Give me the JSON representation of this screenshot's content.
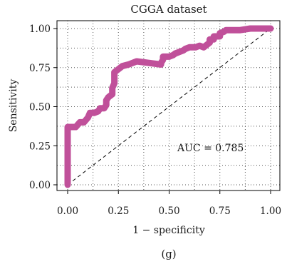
{
  "chart_data": {
    "type": "line",
    "title": "CGGA dataset",
    "xlabel": "1 − specificity",
    "ylabel": "Sensitivity",
    "xlim": [
      0,
      1
    ],
    "ylim": [
      0,
      1
    ],
    "xticks": [
      0,
      0.25,
      0.5,
      0.75,
      1
    ],
    "yticks": [
      0,
      0.25,
      0.5,
      0.75,
      1
    ],
    "xtick_labels": [
      "0.00",
      "0.25",
      "0.50",
      "0.75",
      "1.00"
    ],
    "ytick_labels": [
      "0.00",
      "0.25",
      "0.50",
      "0.75",
      "1.00"
    ],
    "grid": true,
    "annotation": "AUC = 0.785",
    "reference_line": {
      "x": [
        0,
        1
      ],
      "y": [
        0,
        1
      ],
      "style": "dashed",
      "color": "#000000"
    },
    "series": [
      {
        "color": "#c0509a",
        "x": [
          0.0,
          0.0,
          0.0,
          0.0,
          0.02,
          0.04,
          0.06,
          0.08,
          0.1,
          0.11,
          0.13,
          0.15,
          0.16,
          0.18,
          0.19,
          0.19,
          0.2,
          0.21,
          0.22,
          0.22,
          0.23,
          0.23,
          0.25,
          0.27,
          0.3,
          0.32,
          0.34,
          0.4,
          0.46,
          0.46,
          0.47,
          0.47,
          0.5,
          0.52,
          0.53,
          0.55,
          0.57,
          0.58,
          0.6,
          0.63,
          0.65,
          0.67,
          0.69,
          0.7,
          0.7,
          0.72,
          0.72,
          0.75,
          0.75,
          0.77,
          0.78,
          0.85,
          0.9,
          0.93,
          0.97,
          1.0
        ],
        "y": [
          0.0,
          0.1,
          0.3,
          0.37,
          0.37,
          0.37,
          0.4,
          0.4,
          0.43,
          0.46,
          0.46,
          0.47,
          0.49,
          0.49,
          0.51,
          0.54,
          0.56,
          0.57,
          0.58,
          0.62,
          0.65,
          0.72,
          0.74,
          0.76,
          0.77,
          0.78,
          0.79,
          0.78,
          0.77,
          0.78,
          0.8,
          0.82,
          0.82,
          0.83,
          0.84,
          0.85,
          0.86,
          0.87,
          0.88,
          0.88,
          0.89,
          0.88,
          0.9,
          0.91,
          0.93,
          0.93,
          0.95,
          0.95,
          0.97,
          0.98,
          0.99,
          0.99,
          1.0,
          1.0,
          1.0,
          1.0
        ]
      }
    ]
  },
  "caption": "(g)"
}
